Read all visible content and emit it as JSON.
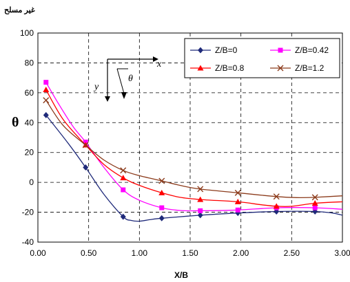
{
  "chart_data": {
    "type": "line",
    "title": "",
    "corner_note": "غير مسلح",
    "xlabel": "X/B",
    "ylabel": "θ",
    "xlim": [
      0,
      3
    ],
    "ylim": [
      -40,
      100
    ],
    "x_ticks": [
      "0.00",
      "0.50",
      "1.00",
      "1.50",
      "2.00",
      "2.50",
      "3.00"
    ],
    "y_ticks": [
      "-40",
      "-20",
      "0",
      "20",
      "40",
      "60",
      "80",
      "100"
    ],
    "grid": "dashed",
    "legend_position": "top-right",
    "inset_labels": {
      "x": "x",
      "y": "y",
      "theta": "θ"
    },
    "series": [
      {
        "name": "Z/B=0",
        "color": "#1f2a7a",
        "marker": "diamond",
        "points": [
          [
            0.08,
            45
          ],
          [
            0.47,
            10
          ],
          [
            0.84,
            -23
          ],
          [
            1.22,
            -24
          ],
          [
            1.6,
            -22
          ],
          [
            1.97,
            -20.5
          ],
          [
            2.35,
            -19.5
          ],
          [
            2.73,
            -19.5
          ]
        ],
        "curve": [
          [
            0.08,
            45
          ],
          [
            0.3,
            26
          ],
          [
            0.47,
            10
          ],
          [
            0.65,
            -8
          ],
          [
            0.84,
            -23
          ],
          [
            0.92,
            -25.5
          ],
          [
            1.0,
            -26
          ],
          [
            1.1,
            -25
          ],
          [
            1.22,
            -24
          ],
          [
            1.6,
            -22
          ],
          [
            1.97,
            -20.5
          ],
          [
            2.35,
            -19.5
          ],
          [
            2.73,
            -19.5
          ],
          [
            2.9,
            -20.5
          ],
          [
            3.0,
            -22
          ]
        ]
      },
      {
        "name": "Z/B=0.42",
        "color": "#ff00ff",
        "marker": "square",
        "points": [
          [
            0.08,
            67
          ],
          [
            0.47,
            27
          ],
          [
            0.84,
            -5
          ],
          [
            1.22,
            -17
          ],
          [
            1.6,
            -19
          ],
          [
            1.97,
            -18.5
          ],
          [
            2.35,
            -17
          ],
          [
            2.73,
            -17
          ]
        ],
        "curve": [
          [
            0.08,
            67
          ],
          [
            0.2,
            53
          ],
          [
            0.35,
            37
          ],
          [
            0.47,
            27
          ],
          [
            0.65,
            10
          ],
          [
            0.84,
            -5
          ],
          [
            1.0,
            -12
          ],
          [
            1.22,
            -17
          ],
          [
            1.4,
            -18.8
          ],
          [
            1.6,
            -19
          ],
          [
            1.97,
            -18.5
          ],
          [
            2.35,
            -17
          ],
          [
            2.73,
            -17
          ],
          [
            3.0,
            -18
          ]
        ]
      },
      {
        "name": "Z/B=0.8",
        "color": "#ff0000",
        "marker": "triangle",
        "points": [
          [
            0.08,
            62
          ],
          [
            0.47,
            25
          ],
          [
            0.84,
            3
          ],
          [
            1.22,
            -7
          ],
          [
            1.6,
            -11.5
          ],
          [
            1.97,
            -13
          ],
          [
            2.35,
            -16
          ],
          [
            2.73,
            -14
          ]
        ],
        "curve": [
          [
            0.08,
            62
          ],
          [
            0.25,
            42
          ],
          [
            0.47,
            25
          ],
          [
            0.65,
            12
          ],
          [
            0.84,
            3
          ],
          [
            1.0,
            -2
          ],
          [
            1.22,
            -7
          ],
          [
            1.4,
            -10
          ],
          [
            1.6,
            -11.5
          ],
          [
            1.97,
            -13
          ],
          [
            2.2,
            -15
          ],
          [
            2.35,
            -16
          ],
          [
            2.5,
            -16
          ],
          [
            2.73,
            -14
          ],
          [
            3.0,
            -13
          ]
        ]
      },
      {
        "name": "Z/B=1.2",
        "color": "#8b3a1a",
        "marker": "x",
        "points": [
          [
            0.08,
            55
          ],
          [
            0.47,
            25
          ],
          [
            0.84,
            8
          ],
          [
            1.22,
            1
          ],
          [
            1.6,
            -4.5
          ],
          [
            1.97,
            -7
          ],
          [
            2.35,
            -9.5
          ],
          [
            2.73,
            -10
          ]
        ],
        "curve": [
          [
            0.08,
            55
          ],
          [
            0.25,
            38
          ],
          [
            0.47,
            25
          ],
          [
            0.65,
            15
          ],
          [
            0.84,
            8
          ],
          [
            1.0,
            4.5
          ],
          [
            1.22,
            1
          ],
          [
            1.4,
            -2
          ],
          [
            1.6,
            -4.5
          ],
          [
            1.97,
            -7
          ],
          [
            2.35,
            -9.5
          ],
          [
            2.55,
            -10.2
          ],
          [
            2.73,
            -10
          ],
          [
            3.0,
            -9
          ]
        ]
      }
    ]
  }
}
